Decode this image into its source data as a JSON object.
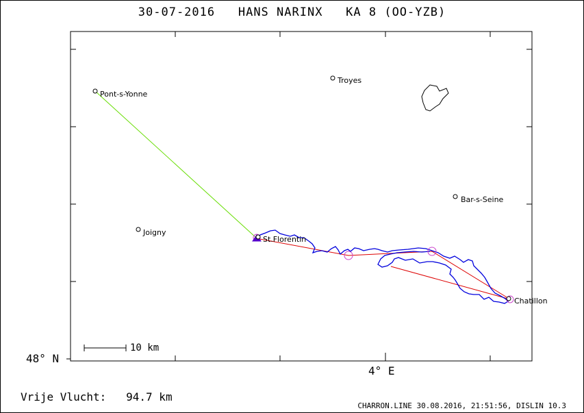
{
  "header": {
    "date": "30-07-2016",
    "pilot": "HANS NARINX",
    "glider": "KA 8 (OO-YZB)"
  },
  "axes": {
    "lat_label": "48° N",
    "lon_label": "4° E"
  },
  "towns": [
    {
      "name": "Pont-s-Yonne"
    },
    {
      "name": "Troyes"
    },
    {
      "name": "Bar-s-Seine"
    },
    {
      "name": "Joigny"
    },
    {
      "name": "St.Florentin"
    },
    {
      "name": "Chatillon"
    }
  ],
  "scale": {
    "label": "10 km"
  },
  "flight": {
    "distance_label": "Vrije Vlucht:",
    "distance_value": "94.7 km"
  },
  "footer": "CHARRON.LINE 30.08.2016, 21:51:56, DISLIN 10.3",
  "colors": {
    "track": "#0000dd",
    "task_line": "#dd0000",
    "tow_line": "#66dd00",
    "turnpoint": "#cc44cc"
  }
}
